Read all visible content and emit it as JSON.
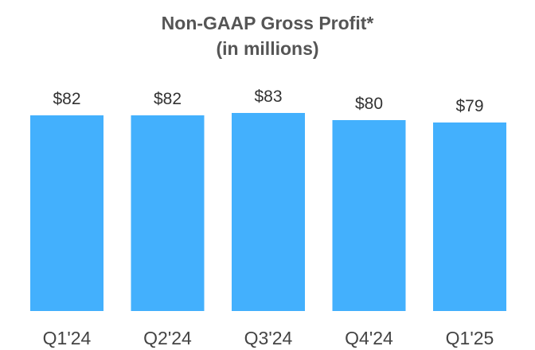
{
  "chart_data": {
    "type": "bar",
    "title": "Non-GAAP Gross Profit*",
    "subtitle": "(in millions)",
    "categories": [
      "Q1'24",
      "Q2'24",
      "Q3'24",
      "Q4'24",
      "Q1'25"
    ],
    "values": [
      82,
      82,
      83,
      80,
      79
    ],
    "value_labels": [
      "$82",
      "$82",
      "$83",
      "$80",
      "$79"
    ],
    "xlabel": "",
    "ylabel": "",
    "ylim": [
      0,
      90
    ],
    "grid": false,
    "bar_color": "#43B0FD",
    "label_color": "#333333",
    "title_color": "#555555"
  }
}
